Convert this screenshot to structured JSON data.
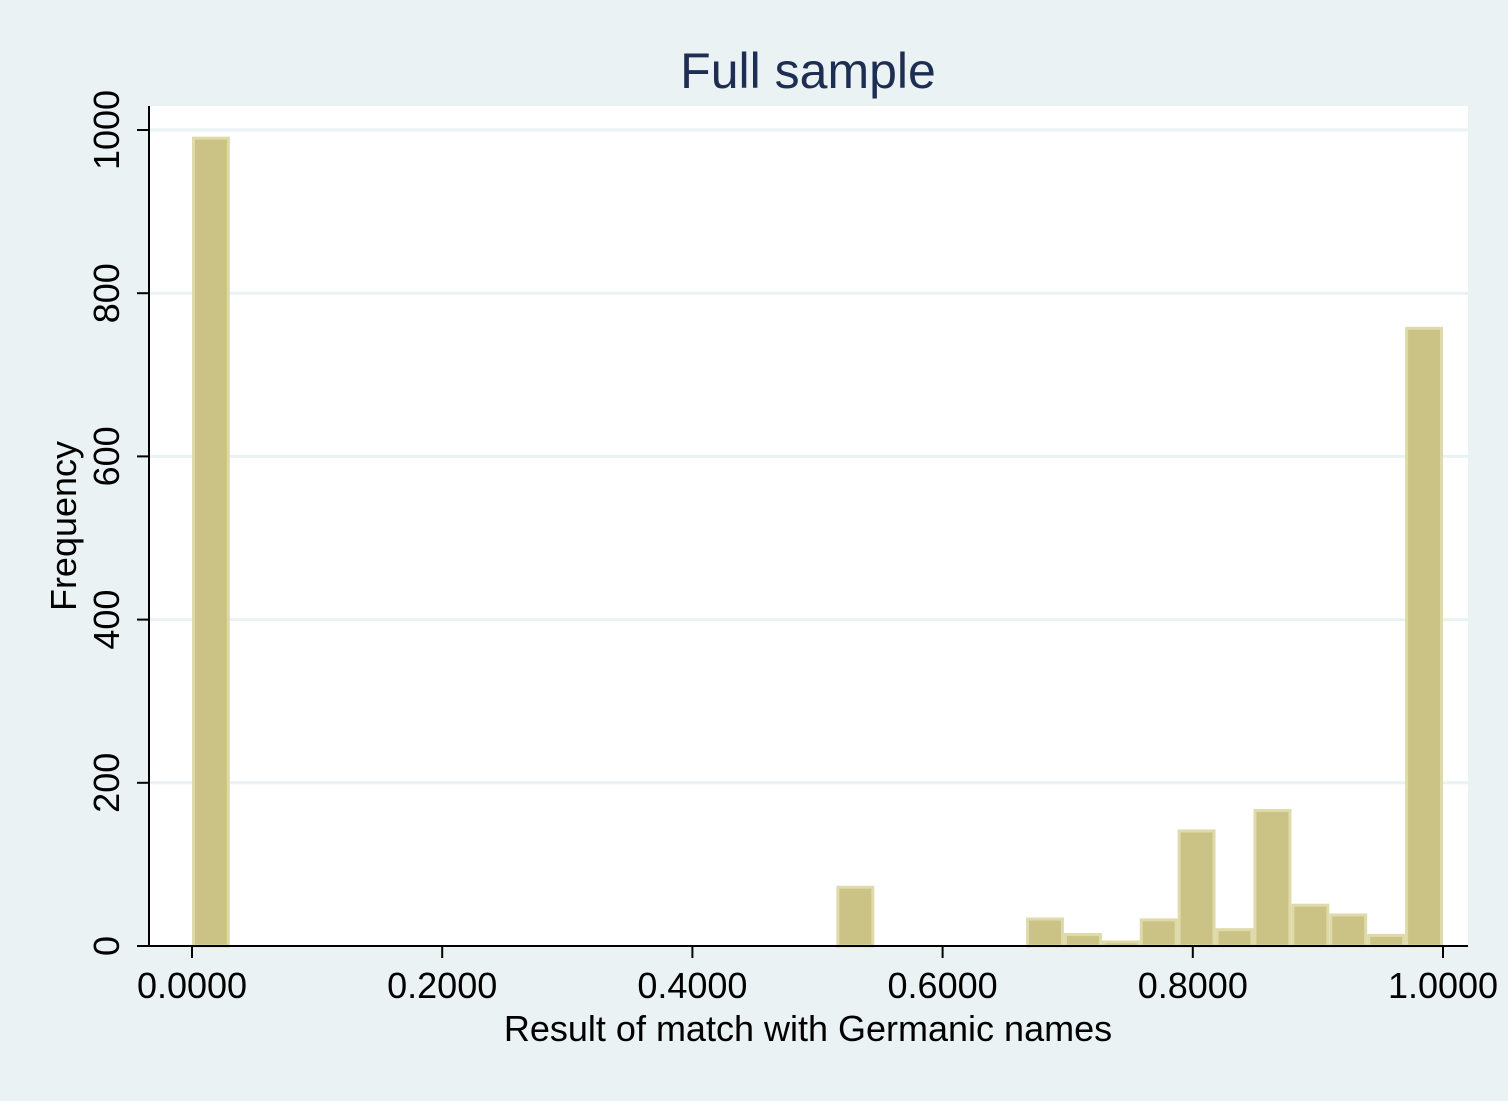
{
  "chart_data": {
    "type": "bar",
    "title": "Full sample",
    "xlabel": "Result of match with Germanic names",
    "ylabel": "Frequency",
    "xlim": [
      -0.0377,
      1.0377
    ],
    "ylim": [
      0,
      1000
    ],
    "xticks": [
      {
        "value": 0.0,
        "label": "0.0000"
      },
      {
        "value": 0.2,
        "label": "0.2000"
      },
      {
        "value": 0.4,
        "label": "0.4000"
      },
      {
        "value": 0.6,
        "label": "0.6000"
      },
      {
        "value": 0.8,
        "label": "0.8000"
      },
      {
        "value": 1.0,
        "label": "1.0000"
      }
    ],
    "yticks": [
      {
        "value": 0,
        "label": "0"
      },
      {
        "value": 200,
        "label": "200"
      },
      {
        "value": 400,
        "label": "400"
      },
      {
        "value": 600,
        "label": "600"
      },
      {
        "value": 800,
        "label": "800"
      },
      {
        "value": 1000,
        "label": "1000"
      }
    ],
    "grid": true,
    "bin_width": 0.0303,
    "bins": [
      {
        "x": 0.0,
        "value": 990
      },
      {
        "x": 0.5151,
        "value": 72
      },
      {
        "x": 0.6667,
        "value": 33
      },
      {
        "x": 0.697,
        "value": 14
      },
      {
        "x": 0.7273,
        "value": 5
      },
      {
        "x": 0.7576,
        "value": 32
      },
      {
        "x": 0.7879,
        "value": 141
      },
      {
        "x": 0.8182,
        "value": 20
      },
      {
        "x": 0.8485,
        "value": 166
      },
      {
        "x": 0.8788,
        "value": 50
      },
      {
        "x": 0.9091,
        "value": 38
      },
      {
        "x": 0.9394,
        "value": 13
      },
      {
        "x": 0.9697,
        "value": 757
      }
    ],
    "colors": {
      "bar_fill": "#cbc385",
      "bar_stroke": "#dfdaa9",
      "title": "#1e2d52",
      "grid": "#eaf2f3",
      "axis": "#000000",
      "plot_bg": "#ffffff",
      "outer_bg": "#eaf2f3"
    }
  }
}
